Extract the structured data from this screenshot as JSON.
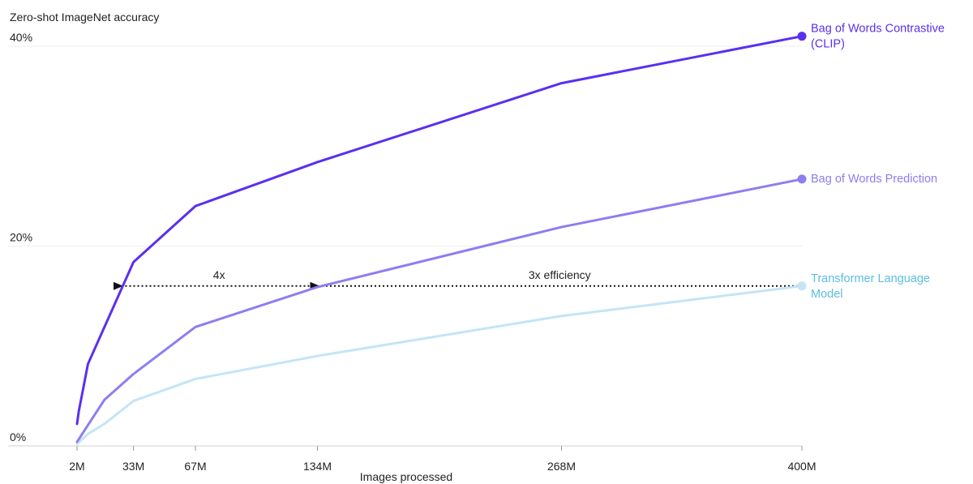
{
  "chart_data": {
    "type": "line",
    "ylabel": "Zero-shot ImageNet accuracy",
    "xlabel": "Images processed",
    "x_ticks": [
      {
        "value": 2,
        "label": "2M"
      },
      {
        "value": 33,
        "label": "33M"
      },
      {
        "value": 67,
        "label": "67M"
      },
      {
        "value": 134,
        "label": "134M"
      },
      {
        "value": 268,
        "label": "268M"
      },
      {
        "value": 400,
        "label": "400M"
      }
    ],
    "y_ticks": [
      {
        "value": 0,
        "label": "0%"
      },
      {
        "value": 20,
        "label": "20%"
      },
      {
        "value": 40,
        "label": "40%"
      }
    ],
    "xlim": [
      2,
      400
    ],
    "ylim": [
      0,
      40
    ],
    "grid": true,
    "series": [
      {
        "name": "Bag of Words Contrastive (CLIP)",
        "label_lines": [
          "Bag of Words Contrastive",
          "(CLIP)"
        ],
        "color": "#5b2ff0",
        "x": [
          2,
          3,
          8,
          33,
          67,
          134,
          268,
          400
        ],
        "y": [
          2.2,
          3.5,
          8.2,
          18.4,
          24.0,
          28.4,
          36.3,
          41.0
        ]
      },
      {
        "name": "Bag of Words Prediction",
        "label_lines": [
          "Bag of Words Prediction"
        ],
        "color": "#8c7ef0",
        "x": [
          2,
          17,
          33,
          67,
          134,
          268,
          400
        ],
        "y": [
          0.4,
          4.6,
          7.2,
          11.9,
          15.9,
          21.9,
          26.7
        ]
      },
      {
        "name": "Transformer Language Model",
        "label_lines": [
          "Transformer Language",
          "Model"
        ],
        "color": "#c4e5f5",
        "label_color": "#5bbde0",
        "x": [
          2,
          8,
          17,
          33,
          67,
          134,
          268,
          400
        ],
        "y": [
          0.2,
          1.2,
          2.2,
          4.5,
          6.7,
          9.0,
          13.0,
          16.0
        ]
      }
    ],
    "annotations": [
      {
        "text": "4x",
        "from_x": 134,
        "to_x": 26,
        "y": 16.0
      },
      {
        "text": "3x efficiency",
        "from_x": 400,
        "to_x": 134,
        "y": 16.0
      }
    ]
  }
}
